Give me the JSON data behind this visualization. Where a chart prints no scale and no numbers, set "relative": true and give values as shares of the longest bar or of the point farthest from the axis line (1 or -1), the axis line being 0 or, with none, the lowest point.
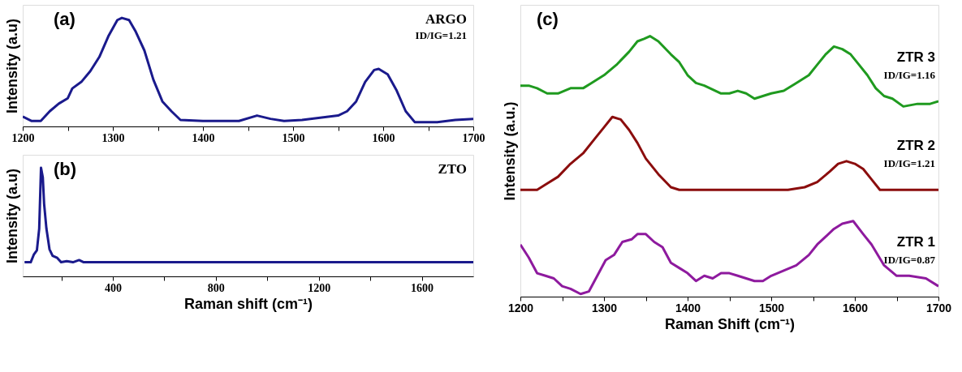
{
  "chart_data": [
    {
      "type": "line",
      "relative": true,
      "ylabel": "Intensity (a.u)",
      "xlim": [
        1200,
        1700
      ],
      "xticks": [
        1200,
        {
          "value": 1250,
          "label": null
        },
        1300,
        {
          "value": 1350,
          "label": null
        },
        1400,
        {
          "value": 1450,
          "label": null
        },
        1500,
        {
          "value": 1550,
          "label": null
        },
        1600,
        {
          "value": 1650,
          "label": null
        },
        1700
      ],
      "annotations": [
        "(a)",
        "ID/IG=1.21"
      ],
      "series": [
        {
          "name": "ARGO",
          "color": "#1a1a8c",
          "x": [
            1200,
            1210,
            1220,
            1230,
            1240,
            1250,
            1255,
            1265,
            1275,
            1285,
            1295,
            1305,
            1310,
            1318,
            1325,
            1335,
            1345,
            1355,
            1365,
            1375,
            1400,
            1440,
            1460,
            1475,
            1490,
            1510,
            1530,
            1550,
            1560,
            1570,
            1580,
            1590,
            1595,
            1605,
            1615,
            1625,
            1635,
            1660,
            1680,
            1700
          ],
          "values": [
            0.09,
            0.05,
            0.05,
            0.14,
            0.21,
            0.26,
            0.35,
            0.41,
            0.51,
            0.64,
            0.83,
            0.98,
            1,
            0.98,
            0.88,
            0.7,
            0.43,
            0.23,
            0.14,
            0.06,
            0.05,
            0.05,
            0.1,
            0.07,
            0.05,
            0.06,
            0.08,
            0.1,
            0.14,
            0.23,
            0.41,
            0.52,
            0.53,
            0.48,
            0.33,
            0.14,
            0.04,
            0.04,
            0.06,
            0.07
          ]
        }
      ]
    },
    {
      "type": "line",
      "relative": true,
      "ylabel": "Intensity (a.u)",
      "xlabel": "Raman shift (cm⁻¹)",
      "xlim": [
        50,
        1800
      ],
      "xticks": [
        {
          "value": 200,
          "label": null
        },
        400,
        {
          "value": 600,
          "label": null
        },
        800,
        {
          "value": 1000,
          "label": null
        },
        1200,
        {
          "value": 1400,
          "label": null
        },
        1600
      ],
      "annotations": [
        "(b)"
      ],
      "series": [
        {
          "name": "ZTO",
          "color": "#1a1a8c",
          "x": [
            57,
            81,
            93,
            105,
            114,
            121,
            128,
            133,
            142,
            154,
            166,
            184,
            199,
            221,
            245,
            269,
            287,
            1000,
            1800
          ],
          "values": [
            0.13,
            0.13,
            0.2,
            0.24,
            0.44,
            1,
            0.91,
            0.67,
            0.44,
            0.25,
            0.19,
            0.17,
            0.13,
            0.14,
            0.13,
            0.15,
            0.13,
            0.13,
            0.13
          ]
        }
      ]
    },
    {
      "type": "line",
      "relative": true,
      "ylabel": "Intensity (a.u.)",
      "xlabel": "Raman Shift (cm⁻¹)",
      "xlim": [
        1200,
        1700
      ],
      "xticks": [
        1200,
        {
          "value": 1250,
          "label": null
        },
        1300,
        {
          "value": 1350,
          "label": null
        },
        1400,
        {
          "value": 1450,
          "label": null
        },
        1500,
        {
          "value": 1550,
          "label": null
        },
        1600,
        {
          "value": 1650,
          "label": null
        },
        1700
      ],
      "annotations": [
        "(c)",
        "ID/IG=1.16",
        "ID/IG=1.21",
        "ID/IG=0.87"
      ],
      "series": [
        {
          "name": "ZTR 3",
          "color": "#1f9a1f",
          "x": [
            1200,
            1210,
            1220,
            1232,
            1245,
            1260,
            1275,
            1285,
            1300,
            1315,
            1330,
            1340,
            1348,
            1355,
            1365,
            1380,
            1390,
            1400,
            1410,
            1420,
            1440,
            1450,
            1460,
            1470,
            1480,
            1490,
            1500,
            1515,
            1530,
            1545,
            1555,
            1565,
            1575,
            1585,
            1595,
            1605,
            1615,
            1625,
            1635,
            1645,
            1658,
            1675,
            1690,
            1700
          ],
          "values": [
            0.81,
            0.81,
            0.8,
            0.78,
            0.78,
            0.8,
            0.8,
            0.82,
            0.85,
            0.89,
            0.94,
            0.98,
            0.99,
            1,
            0.98,
            0.93,
            0.9,
            0.85,
            0.82,
            0.81,
            0.78,
            0.78,
            0.79,
            0.78,
            0.76,
            0.77,
            0.78,
            0.79,
            0.82,
            0.85,
            0.89,
            0.93,
            0.96,
            0.95,
            0.93,
            0.89,
            0.85,
            0.8,
            0.77,
            0.76,
            0.73,
            0.74,
            0.74,
            0.75
          ]
        },
        {
          "name": "ZTR 2",
          "color": "#8b0d0d",
          "x": [
            1200,
            1220,
            1230,
            1245,
            1260,
            1275,
            1290,
            1300,
            1310,
            1320,
            1330,
            1340,
            1350,
            1365,
            1380,
            1390,
            1400,
            1450,
            1500,
            1520,
            1540,
            1555,
            1570,
            1580,
            1590,
            1600,
            1610,
            1620,
            1630,
            1650,
            1700
          ],
          "values": [
            0.41,
            0.41,
            0.43,
            0.46,
            0.51,
            0.55,
            0.61,
            0.65,
            0.69,
            0.68,
            0.64,
            0.59,
            0.53,
            0.47,
            0.42,
            0.41,
            0.41,
            0.41,
            0.41,
            0.41,
            0.42,
            0.44,
            0.48,
            0.51,
            0.52,
            0.51,
            0.49,
            0.45,
            0.41,
            0.41,
            0.41
          ]
        },
        {
          "name": "ZTR 1",
          "color": "#8e1a9e",
          "x": [
            1200,
            1210,
            1220,
            1230,
            1240,
            1250,
            1260,
            1272,
            1282,
            1292,
            1302,
            1312,
            1322,
            1333,
            1340,
            1350,
            1360,
            1370,
            1380,
            1390,
            1400,
            1410,
            1420,
            1430,
            1440,
            1450,
            1460,
            1470,
            1480,
            1490,
            1500,
            1515,
            1530,
            1545,
            1555,
            1565,
            1575,
            1585,
            1598,
            1610,
            1620,
            1635,
            1650,
            1655,
            1665,
            1685,
            1700
          ],
          "values": [
            0.2,
            0.15,
            0.09,
            0.08,
            0.07,
            0.04,
            0.03,
            0.01,
            0.02,
            0.08,
            0.14,
            0.16,
            0.21,
            0.22,
            0.24,
            0.24,
            0.21,
            0.19,
            0.13,
            0.11,
            0.09,
            0.06,
            0.08,
            0.07,
            0.09,
            0.09,
            0.08,
            0.07,
            0.06,
            0.06,
            0.08,
            0.1,
            0.12,
            0.16,
            0.2,
            0.23,
            0.26,
            0.28,
            0.29,
            0.24,
            0.2,
            0.12,
            0.08,
            0.08,
            0.08,
            0.07,
            0.04
          ]
        }
      ]
    }
  ]
}
